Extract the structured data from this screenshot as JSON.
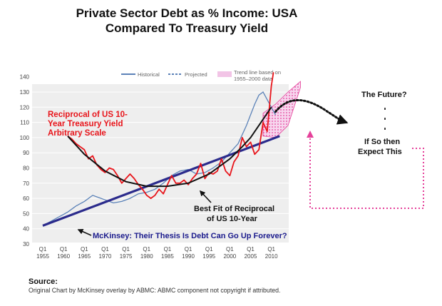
{
  "title_line1": "Private Sector Debt as % Income: USA",
  "title_line2": "Compared To Treasury Yield",
  "legend": {
    "historical": "Historical",
    "projected": "Projected",
    "trend_line1": "Trend line based on",
    "trend_line2": "1955–2000 data"
  },
  "annotations": {
    "reciprocal": [
      "Reciprocal of US 10-",
      "Year Treasury Yield",
      "Arbitrary Scale"
    ],
    "future": "The Future?",
    "if_so": [
      "If So then",
      "Expect This"
    ],
    "best_fit": [
      "Best Fit of Reciprocal",
      "of  US 10-Year"
    ],
    "mckinsey": "McKinsey: Their Thesis Is Debt Can Go Up Forever?"
  },
  "source_label": "Source:",
  "source_text": "Original Chart by McKinsey overlay by ABMC: ABMC component not copyright if attributed.",
  "colors": {
    "historical": "#5b82b8",
    "trend_line": "#2b2b8c",
    "treasury": "#e8141a",
    "fit_curve": "#111111",
    "pink": "#e5419a",
    "trend_fill": "#f2c4e6",
    "mckinsey_text": "#1a1a8c",
    "reciprocal_text": "#e8141a"
  },
  "chart_data": {
    "type": "line",
    "x_ticks": [
      {
        "q": "Q1",
        "year": "1955"
      },
      {
        "q": "Q1",
        "year": "1960"
      },
      {
        "q": "Q1",
        "year": "1965"
      },
      {
        "q": "Q1",
        "year": "1970"
      },
      {
        "q": "Q1",
        "year": "1975"
      },
      {
        "q": "Q1",
        "year": "1980"
      },
      {
        "q": "Q1",
        "year": "1985"
      },
      {
        "q": "Q1",
        "year": "1990"
      },
      {
        "q": "Q1",
        "year": "1995"
      },
      {
        "q": "Q1",
        "year": "2000"
      },
      {
        "q": "Q1",
        "year": "2005"
      },
      {
        "q": "Q1",
        "year": "2010"
      }
    ],
    "xlim": [
      1955,
      2012
    ],
    "y_ticks": [
      "140",
      "130",
      "120",
      "110",
      "100",
      "90",
      "80",
      "70",
      "60",
      "50",
      "40",
      "30"
    ],
    "ylim": [
      30,
      140
    ],
    "historical": [
      [
        1955,
        42
      ],
      [
        1957,
        45
      ],
      [
        1959,
        48
      ],
      [
        1961,
        51
      ],
      [
        1963,
        55
      ],
      [
        1965,
        58
      ],
      [
        1967,
        62
      ],
      [
        1968,
        61
      ],
      [
        1970,
        59
      ],
      [
        1972,
        57
      ],
      [
        1974,
        58
      ],
      [
        1976,
        60
      ],
      [
        1978,
        63
      ],
      [
        1980,
        64
      ],
      [
        1982,
        66
      ],
      [
        1984,
        70
      ],
      [
        1986,
        75
      ],
      [
        1988,
        78
      ],
      [
        1990,
        79
      ],
      [
        1992,
        76
      ],
      [
        1994,
        77
      ],
      [
        1996,
        80
      ],
      [
        1998,
        84
      ],
      [
        2000,
        90
      ],
      [
        2002,
        96
      ],
      [
        2004,
        108
      ],
      [
        2006,
        122
      ],
      [
        2007,
        128
      ],
      [
        2008,
        130
      ],
      [
        2009,
        125
      ],
      [
        2010,
        120
      ],
      [
        2011,
        115
      ]
    ],
    "trend_line": [
      [
        1955,
        42
      ],
      [
        2012,
        101
      ]
    ],
    "trend_band_upper": [
      [
        2008,
        116
      ],
      [
        2011,
        122
      ],
      [
        2014,
        130
      ],
      [
        2017,
        137
      ]
    ],
    "trend_band_lower": [
      [
        2008,
        101
      ],
      [
        2011,
        100
      ],
      [
        2014,
        108
      ],
      [
        2017,
        133
      ]
    ],
    "treasury_reciprocal": [
      [
        1961,
        101
      ],
      [
        1962,
        99
      ],
      [
        1963,
        96
      ],
      [
        1964,
        94
      ],
      [
        1965,
        92
      ],
      [
        1966,
        86
      ],
      [
        1967,
        88
      ],
      [
        1968,
        82
      ],
      [
        1969,
        79
      ],
      [
        1970,
        77
      ],
      [
        1971,
        80
      ],
      [
        1972,
        79
      ],
      [
        1973,
        75
      ],
      [
        1974,
        70
      ],
      [
        1975,
        73
      ],
      [
        1976,
        76
      ],
      [
        1977,
        73
      ],
      [
        1978,
        69
      ],
      [
        1979,
        66
      ],
      [
        1980,
        62
      ],
      [
        1981,
        60
      ],
      [
        1982,
        62
      ],
      [
        1983,
        66
      ],
      [
        1984,
        63
      ],
      [
        1985,
        69
      ],
      [
        1986,
        75
      ],
      [
        1987,
        70
      ],
      [
        1988,
        70
      ],
      [
        1989,
        72
      ],
      [
        1990,
        69
      ],
      [
        1991,
        73
      ],
      [
        1992,
        76
      ],
      [
        1993,
        83
      ],
      [
        1994,
        73
      ],
      [
        1995,
        77
      ],
      [
        1996,
        76
      ],
      [
        1997,
        78
      ],
      [
        1998,
        86
      ],
      [
        1999,
        78
      ],
      [
        2000,
        75
      ],
      [
        2001,
        84
      ],
      [
        2002,
        88
      ],
      [
        2003,
        100
      ],
      [
        2004,
        94
      ],
      [
        2005,
        97
      ],
      [
        2006,
        89
      ],
      [
        2007,
        92
      ],
      [
        2008,
        110
      ],
      [
        2009,
        104
      ],
      [
        2010,
        134
      ],
      [
        2010.5,
        143
      ]
    ],
    "fit_curve": [
      [
        1961,
        101
      ],
      [
        1965,
        89
      ],
      [
        1970,
        78
      ],
      [
        1975,
        71
      ],
      [
        1980,
        68
      ],
      [
        1985,
        68
      ],
      [
        1990,
        70
      ],
      [
        1995,
        76
      ],
      [
        2000,
        86
      ],
      [
        2003,
        94
      ],
      [
        2005,
        100
      ],
      [
        2008,
        112
      ],
      [
        2010,
        120
      ]
    ],
    "projection": [
      [
        2011,
        117
      ],
      [
        2014,
        122
      ],
      [
        2018,
        123
      ],
      [
        2023,
        118
      ],
      [
        2028,
        110
      ]
    ]
  }
}
